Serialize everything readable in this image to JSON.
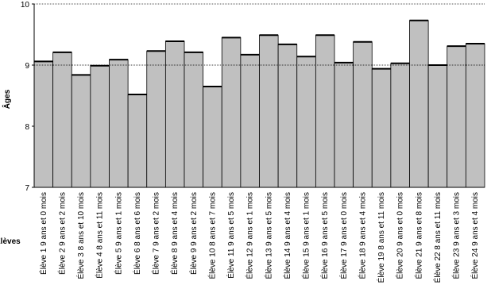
{
  "chart_data": {
    "type": "bar",
    "y_label": "Âges",
    "x_label": "Élèves",
    "categories": [
      "Élève 1  9 ans et 0 mois",
      "Élève 2  9 ans et 2 mois",
      "Élève 3  8 ans et 10 mois",
      "Élève 4  8 ans et 11 mois",
      "Élève 5  9 ans et 1 mois",
      "Élève 6  8 ans et 6 mois",
      "Élève 7  9 ans et 2 mois",
      "Élève 8  9 ans et 4 mois",
      "Élève 9  9 ans et 2 mois",
      "Élève 10  8 ans et 7 mois",
      "Élève 11  9 ans et 5 mois",
      "Élève 12  9 ans et 1 mois",
      "Élève 13  9 ans et 5 mois",
      "Élève 14  9 ans et 4 mois",
      "Élève 15  9 ans et 1 mois",
      "Élève 16  9 ans et 5 mois",
      "Élève 17  9 ans et 0 mois",
      "Élève 18  9 ans et 4 mois",
      "Élève 19  8 ans et 11 mois",
      "Élève 20  9 ans et 0 mois",
      "Élève 21  9 ans et 8 mois",
      "Élève 22  8 ans et 11 mois",
      "Élève 23  9 ans et 3 mois",
      "Élève 24  9 ans et 4 mois"
    ],
    "values": [
      9.06,
      9.21,
      8.84,
      8.99,
      9.09,
      8.52,
      9.23,
      9.39,
      9.21,
      8.65,
      9.45,
      9.17,
      9.49,
      9.34,
      9.14,
      9.49,
      9.04,
      9.38,
      8.94,
      9.03,
      9.73,
      9.0,
      9.31,
      9.35
    ],
    "color": "#c0c0c0",
    "ylim": [
      7,
      10
    ],
    "yticks": [
      7,
      8,
      9,
      10
    ],
    "reference_line": 9
  }
}
